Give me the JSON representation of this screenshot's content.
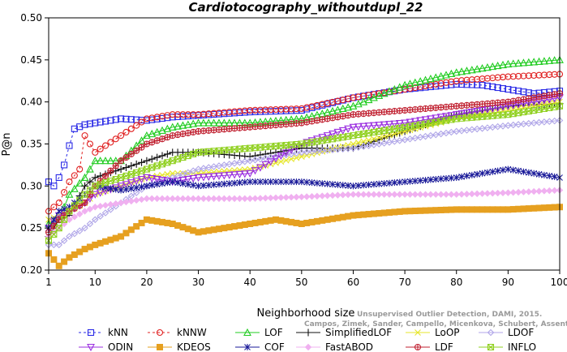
{
  "chart_data": {
    "type": "line",
    "title": "Cardiotocography_withoutdupl_22",
    "xlabel": "Neighborhood size",
    "ylabel": "P@n",
    "xlim": [
      1,
      100
    ],
    "ylim": [
      0.2,
      0.5
    ],
    "xticks": [
      1,
      10,
      20,
      30,
      40,
      50,
      60,
      70,
      80,
      90,
      100
    ],
    "yticks": [
      0.2,
      0.25,
      0.3,
      0.35,
      0.4,
      0.45,
      0.5
    ],
    "ytick_labels": [
      "0.20",
      "0.25",
      "0.30",
      "0.35",
      "0.40",
      "0.45",
      "0.50"
    ],
    "grid": false,
    "legend_position": "bottom",
    "watermark": [
      "Unsupervised Outlier Detection, DAMI, 2015.",
      "Campos, Zimek, Sander, Campello, Micenkova, Schubert, Assent, Houle"
    ],
    "series": [
      {
        "name": "kNN",
        "color": "#2a2ae6",
        "marker": "square-open",
        "dash": true,
        "points": [
          [
            1,
            0.305
          ],
          [
            2,
            0.3
          ],
          [
            3,
            0.31
          ],
          [
            4,
            0.325
          ],
          [
            5,
            0.348
          ],
          [
            6,
            0.368
          ],
          [
            8,
            0.373
          ],
          [
            10,
            0.375
          ],
          [
            15,
            0.38
          ],
          [
            20,
            0.378
          ],
          [
            25,
            0.382
          ],
          [
            30,
            0.384
          ],
          [
            40,
            0.388
          ],
          [
            50,
            0.39
          ],
          [
            60,
            0.405
          ],
          [
            70,
            0.415
          ],
          [
            75,
            0.418
          ],
          [
            80,
            0.421
          ],
          [
            85,
            0.42
          ],
          [
            90,
            0.415
          ],
          [
            95,
            0.41
          ],
          [
            100,
            0.413
          ]
        ]
      },
      {
        "name": "kNNW",
        "color": "#e02020",
        "marker": "circle-open",
        "dash": true,
        "points": [
          [
            1,
            0.27
          ],
          [
            3,
            0.28
          ],
          [
            5,
            0.305
          ],
          [
            7,
            0.32
          ],
          [
            8,
            0.36
          ],
          [
            10,
            0.34
          ],
          [
            15,
            0.36
          ],
          [
            20,
            0.38
          ],
          [
            25,
            0.385
          ],
          [
            30,
            0.385
          ],
          [
            40,
            0.39
          ],
          [
            50,
            0.392
          ],
          [
            60,
            0.405
          ],
          [
            70,
            0.415
          ],
          [
            80,
            0.425
          ],
          [
            90,
            0.43
          ],
          [
            100,
            0.433
          ]
        ]
      },
      {
        "name": "LOF",
        "color": "#22cc22",
        "marker": "triangle-open",
        "dash": false,
        "points": [
          [
            1,
            0.255
          ],
          [
            3,
            0.26
          ],
          [
            5,
            0.29
          ],
          [
            8,
            0.31
          ],
          [
            10,
            0.33
          ],
          [
            15,
            0.33
          ],
          [
            20,
            0.36
          ],
          [
            25,
            0.37
          ],
          [
            30,
            0.375
          ],
          [
            40,
            0.375
          ],
          [
            50,
            0.38
          ],
          [
            60,
            0.395
          ],
          [
            70,
            0.42
          ],
          [
            80,
            0.435
          ],
          [
            90,
            0.445
          ],
          [
            100,
            0.45
          ]
        ]
      },
      {
        "name": "SimplifiedLOF",
        "color": "#111111",
        "marker": "plus",
        "dash": false,
        "points": [
          [
            1,
            0.24
          ],
          [
            3,
            0.26
          ],
          [
            5,
            0.265
          ],
          [
            8,
            0.3
          ],
          [
            10,
            0.31
          ],
          [
            15,
            0.32
          ],
          [
            20,
            0.33
          ],
          [
            25,
            0.34
          ],
          [
            30,
            0.34
          ],
          [
            40,
            0.335
          ],
          [
            50,
            0.345
          ],
          [
            60,
            0.345
          ],
          [
            70,
            0.365
          ],
          [
            80,
            0.385
          ],
          [
            90,
            0.395
          ],
          [
            100,
            0.398
          ]
        ]
      },
      {
        "name": "LoOP",
        "color": "#e6e62a",
        "marker": "x",
        "dash": false,
        "points": [
          [
            1,
            0.26
          ],
          [
            3,
            0.265
          ],
          [
            5,
            0.27
          ],
          [
            8,
            0.28
          ],
          [
            10,
            0.29
          ],
          [
            15,
            0.3
          ],
          [
            20,
            0.31
          ],
          [
            25,
            0.315
          ],
          [
            30,
            0.315
          ],
          [
            40,
            0.32
          ],
          [
            50,
            0.335
          ],
          [
            60,
            0.35
          ],
          [
            70,
            0.365
          ],
          [
            80,
            0.38
          ],
          [
            90,
            0.39
          ],
          [
            100,
            0.4
          ]
        ]
      },
      {
        "name": "LDOF",
        "color": "#b0a6e8",
        "marker": "diamond-open",
        "dash": false,
        "points": [
          [
            1,
            0.23
          ],
          [
            3,
            0.23
          ],
          [
            5,
            0.24
          ],
          [
            8,
            0.25
          ],
          [
            10,
            0.26
          ],
          [
            15,
            0.28
          ],
          [
            20,
            0.3
          ],
          [
            25,
            0.31
          ],
          [
            30,
            0.32
          ],
          [
            40,
            0.33
          ],
          [
            50,
            0.34
          ],
          [
            60,
            0.345
          ],
          [
            70,
            0.355
          ],
          [
            80,
            0.365
          ],
          [
            90,
            0.372
          ],
          [
            100,
            0.378
          ]
        ]
      },
      {
        "name": "ODIN",
        "color": "#9b30e0",
        "marker": "triangle-down-open",
        "dash": false,
        "points": [
          [
            1,
            0.25
          ],
          [
            3,
            0.265
          ],
          [
            5,
            0.27
          ],
          [
            8,
            0.28
          ],
          [
            10,
            0.29
          ],
          [
            15,
            0.3
          ],
          [
            20,
            0.31
          ],
          [
            25,
            0.305
          ],
          [
            30,
            0.31
          ],
          [
            40,
            0.315
          ],
          [
            50,
            0.35
          ],
          [
            60,
            0.37
          ],
          [
            70,
            0.375
          ],
          [
            80,
            0.385
          ],
          [
            90,
            0.395
          ],
          [
            100,
            0.405
          ]
        ]
      },
      {
        "name": "KDEOS",
        "color": "#e6a020",
        "marker": "square-filled",
        "dash": false,
        "points": [
          [
            1,
            0.22
          ],
          [
            3,
            0.205
          ],
          [
            5,
            0.215
          ],
          [
            8,
            0.225
          ],
          [
            10,
            0.23
          ],
          [
            15,
            0.24
          ],
          [
            20,
            0.26
          ],
          [
            25,
            0.255
          ],
          [
            30,
            0.245
          ],
          [
            35,
            0.25
          ],
          [
            40,
            0.255
          ],
          [
            45,
            0.26
          ],
          [
            50,
            0.255
          ],
          [
            55,
            0.26
          ],
          [
            60,
            0.265
          ],
          [
            70,
            0.27
          ],
          [
            80,
            0.272
          ],
          [
            90,
            0.272
          ],
          [
            100,
            0.275
          ]
        ]
      },
      {
        "name": "COF",
        "color": "#1a1a99",
        "marker": "asterisk",
        "dash": false,
        "points": [
          [
            1,
            0.25
          ],
          [
            3,
            0.27
          ],
          [
            5,
            0.275
          ],
          [
            8,
            0.29
          ],
          [
            10,
            0.3
          ],
          [
            15,
            0.295
          ],
          [
            20,
            0.3
          ],
          [
            25,
            0.305
          ],
          [
            30,
            0.3
          ],
          [
            40,
            0.305
          ],
          [
            50,
            0.305
          ],
          [
            60,
            0.3
          ],
          [
            70,
            0.305
          ],
          [
            80,
            0.31
          ],
          [
            90,
            0.32
          ],
          [
            100,
            0.31
          ]
        ]
      },
      {
        "name": "FastABOD",
        "color": "#f0b0f0",
        "marker": "diamond-filled",
        "dash": false,
        "points": [
          [
            1,
            0.24
          ],
          [
            3,
            0.25
          ],
          [
            5,
            0.26
          ],
          [
            8,
            0.27
          ],
          [
            10,
            0.275
          ],
          [
            15,
            0.28
          ],
          [
            20,
            0.285
          ],
          [
            30,
            0.285
          ],
          [
            40,
            0.285
          ],
          [
            50,
            0.287
          ],
          [
            60,
            0.29
          ],
          [
            70,
            0.29
          ],
          [
            80,
            0.29
          ],
          [
            90,
            0.292
          ],
          [
            100,
            0.295
          ]
        ]
      },
      {
        "name": "LDF",
        "color": "#c02030",
        "marker": "circle-cross",
        "dash": false,
        "points": [
          [
            1,
            0.245
          ],
          [
            3,
            0.26
          ],
          [
            5,
            0.27
          ],
          [
            8,
            0.28
          ],
          [
            10,
            0.3
          ],
          [
            15,
            0.33
          ],
          [
            20,
            0.35
          ],
          [
            25,
            0.36
          ],
          [
            30,
            0.365
          ],
          [
            40,
            0.37
          ],
          [
            50,
            0.375
          ],
          [
            60,
            0.385
          ],
          [
            70,
            0.39
          ],
          [
            80,
            0.395
          ],
          [
            90,
            0.4
          ],
          [
            100,
            0.41
          ]
        ]
      },
      {
        "name": "INFLO",
        "color": "#90d020",
        "marker": "square-x",
        "dash": false,
        "points": [
          [
            1,
            0.235
          ],
          [
            3,
            0.25
          ],
          [
            5,
            0.27
          ],
          [
            8,
            0.29
          ],
          [
            10,
            0.3
          ],
          [
            15,
            0.31
          ],
          [
            20,
            0.32
          ],
          [
            25,
            0.33
          ],
          [
            30,
            0.34
          ],
          [
            40,
            0.345
          ],
          [
            50,
            0.35
          ],
          [
            60,
            0.36
          ],
          [
            70,
            0.37
          ],
          [
            80,
            0.38
          ],
          [
            90,
            0.385
          ],
          [
            100,
            0.395
          ]
        ]
      }
    ]
  }
}
